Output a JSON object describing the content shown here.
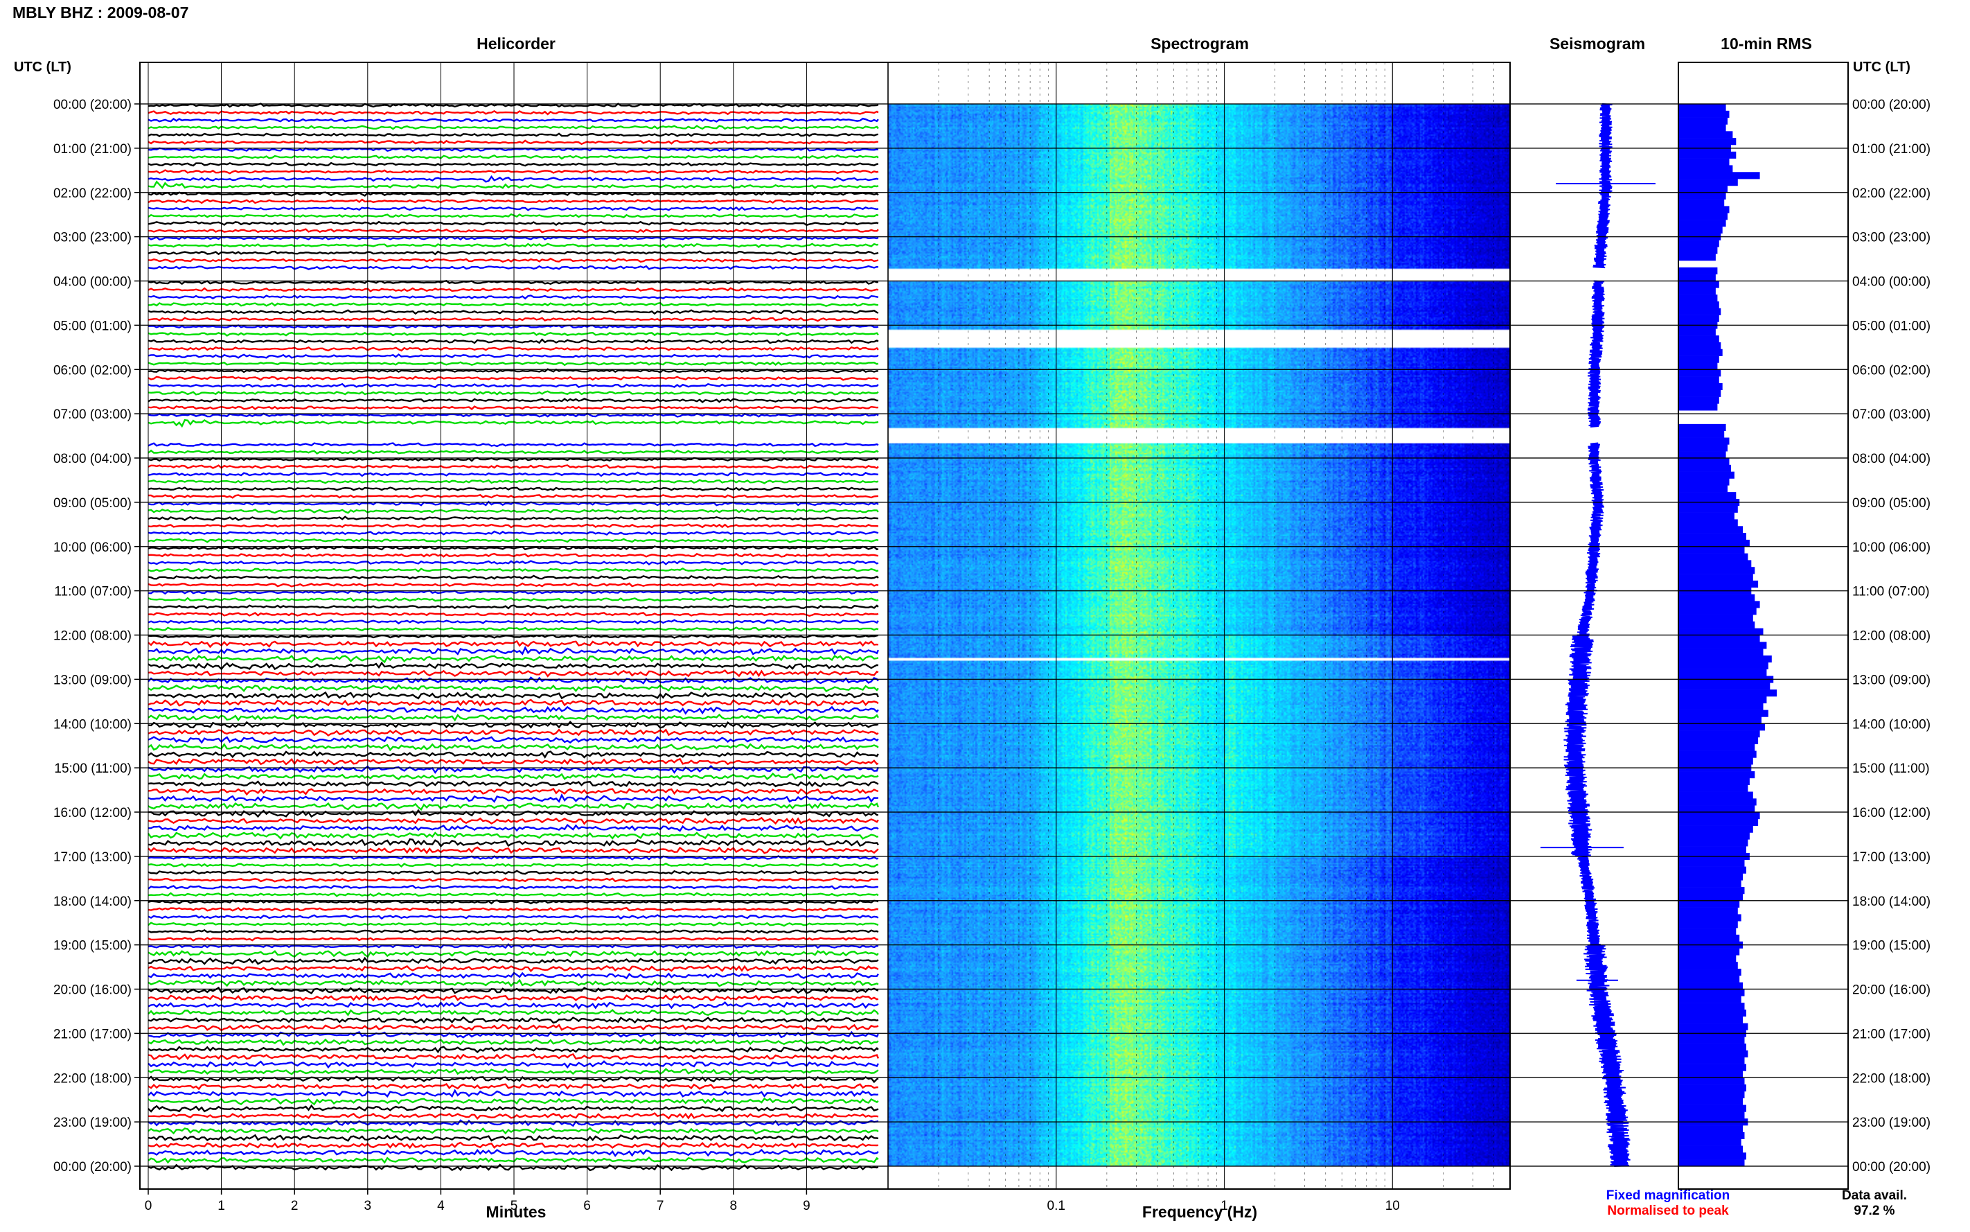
{
  "header": {
    "title": "MBLY BHZ : 2009-08-07"
  },
  "chart_data": [
    {
      "type": "line",
      "panel": "helicorder",
      "title": "Helicorder",
      "xlabel": "Minutes",
      "xticks": [
        0,
        1,
        2,
        3,
        4,
        5,
        6,
        7,
        8,
        9
      ],
      "xlim": [
        0,
        10
      ],
      "ylabel_left": "UTC (LT)",
      "ylabel_right": "UTC (LT)",
      "time_labels": [
        "00:00 (20:00)",
        "01:00 (21:00)",
        "02:00 (22:00)",
        "03:00 (23:00)",
        "04:00 (00:00)",
        "05:00 (01:00)",
        "06:00 (02:00)",
        "07:00 (03:00)",
        "08:00 (04:00)",
        "09:00 (05:00)",
        "10:00 (06:00)",
        "11:00 (07:00)",
        "12:00 (08:00)",
        "13:00 (09:00)",
        "14:00 (10:00)",
        "15:00 (11:00)",
        "16:00 (12:00)",
        "17:00 (13:00)",
        "18:00 (14:00)",
        "19:00 (15:00)",
        "20:00 (16:00)",
        "21:00 (17:00)",
        "22:00 (18:00)",
        "23:00 (19:00)",
        "00:00 (20:00)"
      ],
      "trace_colors": [
        "#000000",
        "#ff0000",
        "#0000ff",
        "#00dd00"
      ],
      "traces_per_hour": 6,
      "gaps_hours": [
        [
          3.7,
          4.0
        ],
        [
          7.3,
          7.65
        ]
      ],
      "events": [
        {
          "hour": 1.6,
          "minute": 4.6,
          "color": "#0000ff"
        },
        {
          "hour": 1.83,
          "minute": 0.15,
          "color": "#00dd00"
        },
        {
          "hour": 7.17,
          "minute": 0.4,
          "color": "#00dd00"
        },
        {
          "hour": 16.67,
          "minute": 3.6,
          "color": "#000000"
        },
        {
          "hour": 19.83,
          "minute": 4.9,
          "color": "#00dd00"
        }
      ]
    },
    {
      "type": "heatmap",
      "panel": "spectrogram",
      "title": "Spectrogram",
      "xlabel": "Frequency (Hz)",
      "xscale": "log",
      "xlim": [
        0.01,
        50
      ],
      "xticks": [
        0.1,
        1,
        10
      ],
      "xticklabels": [
        "0.1",
        "1",
        "10"
      ],
      "colors": [
        "#00008b",
        "#0000ff",
        "#1e90ff",
        "#00ffff",
        "#ffff00"
      ],
      "gaps_hours": [
        [
          3.7,
          4.0
        ],
        [
          5.1,
          5.5
        ],
        [
          7.3,
          7.65
        ],
        [
          12.5,
          12.56
        ]
      ]
    },
    {
      "type": "line",
      "panel": "seismogram",
      "title": "Seismogram",
      "legend": [
        {
          "label": "Fixed magnification",
          "color": "#0000ff"
        },
        {
          "label": "Normalised to peak",
          "color": "#ff0000"
        }
      ],
      "color": "#0000ff",
      "center_offset": [
        [
          0,
          0.0
        ],
        [
          1,
          0.0
        ],
        [
          2,
          0.0
        ],
        [
          3,
          -0.1
        ],
        [
          4,
          -0.2
        ],
        [
          5,
          -0.2
        ],
        [
          6,
          -0.3
        ],
        [
          7,
          -0.3
        ],
        [
          8,
          -0.3
        ],
        [
          9,
          -0.2
        ],
        [
          10,
          -0.3
        ],
        [
          11,
          -0.4
        ],
        [
          12,
          -0.6
        ],
        [
          13,
          -0.7
        ],
        [
          14,
          -0.8
        ],
        [
          15,
          -0.8
        ],
        [
          16,
          -0.7
        ],
        [
          17,
          -0.6
        ],
        [
          18,
          -0.4
        ],
        [
          19,
          -0.3
        ],
        [
          20,
          -0.2
        ],
        [
          21,
          0.0
        ],
        [
          22,
          0.2
        ],
        [
          23,
          0.3
        ],
        [
          24,
          0.4
        ]
      ],
      "spikes": [
        {
          "hour": 1.8,
          "width": 2.4
        },
        {
          "hour": 16.8,
          "width": 2.0
        },
        {
          "hour": 19.8,
          "width": 1.0
        }
      ]
    },
    {
      "type": "bar",
      "panel": "rms",
      "title": "10-min RMS",
      "color": "#0000ff",
      "values": [
        0.28,
        0.3,
        0.29,
        0.28,
        0.32,
        0.34,
        0.31,
        0.34,
        0.3,
        0.32,
        0.48,
        0.35,
        0.29,
        0.28,
        0.27,
        0.3,
        0.29,
        0.28,
        0.26,
        0.25,
        0.24,
        0.23,
        0.22,
        null,
        0.23,
        0.22,
        0.24,
        0.22,
        0.23,
        0.24,
        0.25,
        0.24,
        0.23,
        0.22,
        0.24,
        0.25,
        0.26,
        0.24,
        0.23,
        0.25,
        0.24,
        0.26,
        0.25,
        0.24,
        0.23,
        null,
        null,
        0.28,
        0.27,
        0.3,
        0.29,
        0.28,
        0.3,
        0.31,
        0.33,
        0.3,
        0.29,
        0.34,
        0.36,
        0.35,
        0.33,
        0.35,
        0.38,
        0.4,
        0.42,
        0.39,
        0.41,
        0.43,
        0.45,
        0.44,
        0.47,
        0.43,
        0.45,
        0.48,
        0.46,
        0.44,
        0.45,
        0.5,
        0.48,
        0.52,
        0.5,
        0.55,
        0.53,
        0.52,
        0.56,
        0.54,
        0.58,
        0.52,
        0.5,
        0.53,
        0.49,
        0.51,
        0.48,
        0.47,
        0.45,
        0.46,
        0.44,
        0.43,
        0.45,
        0.42,
        0.41,
        0.44,
        0.46,
        0.45,
        0.48,
        0.47,
        0.44,
        0.42,
        0.41,
        0.4,
        0.42,
        0.39,
        0.4,
        0.38,
        0.37,
        0.39,
        0.38,
        0.36,
        0.35,
        0.37,
        0.35,
        0.34,
        0.36,
        0.38,
        0.36,
        0.34,
        0.35,
        0.37,
        0.36,
        0.38,
        0.39,
        0.37,
        0.39,
        0.4,
        0.38,
        0.41,
        0.4,
        0.39,
        0.4,
        0.41,
        0.39,
        0.4,
        0.38,
        0.39,
        0.4,
        0.39,
        0.38,
        0.4,
        0.39,
        0.41,
        0.38,
        0.39,
        0.37,
        0.38,
        0.4,
        0.39
      ],
      "max_value": 1.0
    }
  ],
  "footer": {
    "data_avail_label": "Data avail.",
    "data_avail_value": "97.2 %"
  }
}
